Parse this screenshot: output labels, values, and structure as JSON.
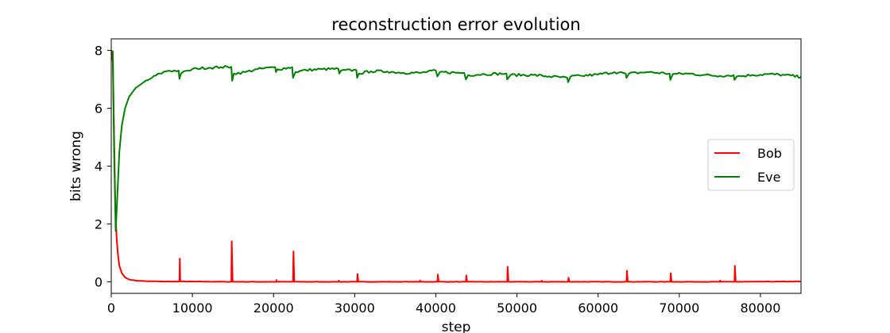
{
  "chart_data": {
    "type": "line",
    "title": "reconstruction error evolution",
    "xlabel": "step",
    "ylabel": "bits wrong",
    "xlim": [
      0,
      85000
    ],
    "ylim": [
      -0.4,
      8.4
    ],
    "xticks": [
      0,
      10000,
      20000,
      30000,
      40000,
      50000,
      60000,
      70000,
      80000
    ],
    "xtick_labels": [
      "0",
      "10000",
      "20000",
      "30000",
      "40000",
      "50000",
      "60000",
      "70000",
      "80000"
    ],
    "yticks": [
      0,
      2,
      4,
      6,
      8
    ],
    "ytick_labels": [
      "0",
      "2",
      "4",
      "6",
      "8"
    ],
    "grid": false,
    "legend": "center-right",
    "series": [
      {
        "name": "Bob",
        "color": "#ff0000",
        "points": [
          [
            0,
            8.0
          ],
          [
            200,
            7.6
          ],
          [
            350,
            5.0
          ],
          [
            500,
            2.6
          ],
          [
            650,
            1.6
          ],
          [
            800,
            1.0
          ],
          [
            1000,
            0.55
          ],
          [
            1300,
            0.3
          ],
          [
            1700,
            0.15
          ],
          [
            2200,
            0.08
          ],
          [
            3000,
            0.04
          ],
          [
            4500,
            0.02
          ],
          [
            6000,
            0.01
          ],
          [
            8400,
            0.01
          ],
          [
            8450,
            0.8
          ],
          [
            8500,
            0.01
          ],
          [
            14800,
            0.0
          ],
          [
            14850,
            1.4
          ],
          [
            14950,
            0.0
          ],
          [
            20300,
            0.0
          ],
          [
            20350,
            0.06
          ],
          [
            20400,
            0.0
          ],
          [
            22400,
            0.0
          ],
          [
            22450,
            1.05
          ],
          [
            22550,
            0.0
          ],
          [
            28000,
            0.0
          ],
          [
            28050,
            0.04
          ],
          [
            28100,
            0.0
          ],
          [
            30300,
            0.0
          ],
          [
            30350,
            0.27
          ],
          [
            30450,
            0.0
          ],
          [
            38000,
            0.0
          ],
          [
            38050,
            0.05
          ],
          [
            38100,
            0.0
          ],
          [
            40200,
            0.0
          ],
          [
            40250,
            0.25
          ],
          [
            40350,
            0.0
          ],
          [
            43700,
            0.0
          ],
          [
            43750,
            0.22
          ],
          [
            43850,
            0.0
          ],
          [
            48800,
            0.0
          ],
          [
            48850,
            0.52
          ],
          [
            48950,
            0.0
          ],
          [
            53000,
            0.0
          ],
          [
            53050,
            0.04
          ],
          [
            53100,
            0.0
          ],
          [
            56300,
            0.0
          ],
          [
            56350,
            0.14
          ],
          [
            56450,
            0.0
          ],
          [
            63500,
            0.0
          ],
          [
            63550,
            0.38
          ],
          [
            63650,
            0.0
          ],
          [
            68900,
            0.0
          ],
          [
            68950,
            0.3
          ],
          [
            69050,
            0.0
          ],
          [
            75000,
            0.0
          ],
          [
            75050,
            0.04
          ],
          [
            75100,
            0.0
          ],
          [
            76800,
            0.0
          ],
          [
            76850,
            0.55
          ],
          [
            76950,
            0.0
          ],
          [
            85000,
            0.01
          ]
        ]
      },
      {
        "name": "Eve",
        "color": "#008000",
        "points": [
          [
            0,
            8.0
          ],
          [
            200,
            7.95
          ],
          [
            350,
            4.5
          ],
          [
            550,
            1.75
          ],
          [
            750,
            3.0
          ],
          [
            1000,
            4.5
          ],
          [
            1300,
            5.4
          ],
          [
            1700,
            6.0
          ],
          [
            2200,
            6.4
          ],
          [
            3000,
            6.7
          ],
          [
            4000,
            6.9
          ],
          [
            5000,
            7.05
          ],
          [
            6000,
            7.2
          ],
          [
            7000,
            7.3
          ],
          [
            8300,
            7.3
          ],
          [
            8400,
            7.02
          ],
          [
            8600,
            7.2
          ],
          [
            9500,
            7.3
          ],
          [
            10500,
            7.38
          ],
          [
            12000,
            7.4
          ],
          [
            13500,
            7.42
          ],
          [
            14800,
            7.43
          ],
          [
            14900,
            6.95
          ],
          [
            15100,
            7.2
          ],
          [
            16500,
            7.25
          ],
          [
            18000,
            7.35
          ],
          [
            20200,
            7.42
          ],
          [
            20300,
            7.25
          ],
          [
            20500,
            7.35
          ],
          [
            22300,
            7.42
          ],
          [
            22400,
            7.05
          ],
          [
            22700,
            7.25
          ],
          [
            24000,
            7.32
          ],
          [
            26000,
            7.35
          ],
          [
            28000,
            7.36
          ],
          [
            28100,
            7.2
          ],
          [
            28300,
            7.3
          ],
          [
            30200,
            7.32
          ],
          [
            30300,
            7.05
          ],
          [
            30500,
            7.2
          ],
          [
            32000,
            7.28
          ],
          [
            34000,
            7.27
          ],
          [
            36000,
            7.23
          ],
          [
            38000,
            7.22
          ],
          [
            40000,
            7.3
          ],
          [
            40200,
            7.1
          ],
          [
            40500,
            7.25
          ],
          [
            43500,
            7.22
          ],
          [
            43700,
            7.0
          ],
          [
            44000,
            7.15
          ],
          [
            46000,
            7.18
          ],
          [
            48700,
            7.2
          ],
          [
            48800,
            7.0
          ],
          [
            49200,
            7.15
          ],
          [
            52000,
            7.15
          ],
          [
            54000,
            7.1
          ],
          [
            56200,
            7.05
          ],
          [
            56300,
            6.9
          ],
          [
            56600,
            7.1
          ],
          [
            58000,
            7.12
          ],
          [
            60000,
            7.17
          ],
          [
            62000,
            7.25
          ],
          [
            63400,
            7.2
          ],
          [
            63500,
            7.05
          ],
          [
            63800,
            7.2
          ],
          [
            66000,
            7.25
          ],
          [
            68800,
            7.2
          ],
          [
            68900,
            6.98
          ],
          [
            69200,
            7.18
          ],
          [
            71000,
            7.2
          ],
          [
            73000,
            7.15
          ],
          [
            75000,
            7.12
          ],
          [
            76700,
            7.15
          ],
          [
            76800,
            6.98
          ],
          [
            77100,
            7.1
          ],
          [
            79000,
            7.15
          ],
          [
            81000,
            7.18
          ],
          [
            83000,
            7.15
          ],
          [
            85000,
            7.08
          ]
        ]
      }
    ]
  }
}
